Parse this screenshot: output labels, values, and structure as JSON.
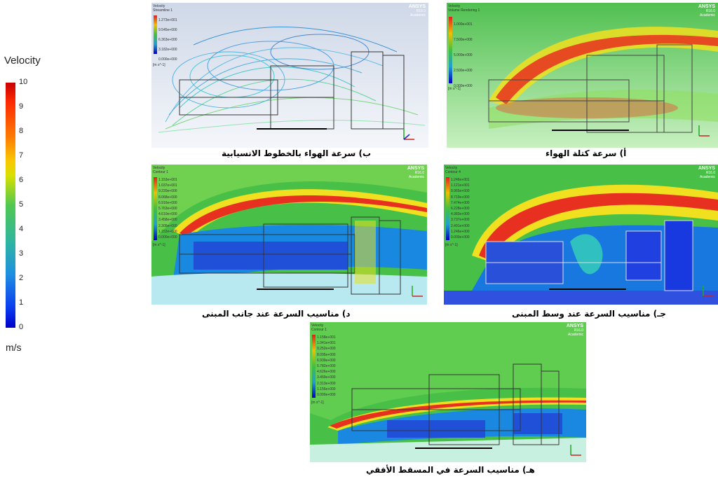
{
  "legend": {
    "title": "Velocity",
    "unit": "m/s",
    "ticks": [
      "10",
      "9",
      "8",
      "7",
      "6",
      "5",
      "4",
      "3",
      "2",
      "1",
      "0"
    ]
  },
  "brand": {
    "name": "ANSYS",
    "version": "R16.0",
    "edition": "Academic"
  },
  "panels": [
    {
      "id": "a",
      "caption": "أ) سرعة كتلة الهواء",
      "legend_title": "Velocity",
      "legend_subtitle": "Volume Rendering 1",
      "legend_values": [
        "1.000e+001",
        "7.500e+000",
        "5.000e+000",
        "2.500e+000",
        "0.000e+000"
      ],
      "legend_unit": "[m s^-1]"
    },
    {
      "id": "b",
      "caption": "ب) سرعة الهواء بالخطوط الانسيابية",
      "legend_title": "Velocity",
      "legend_subtitle": "Streamline 1",
      "legend_values": [
        "1.273e+001",
        "9.545e+000",
        "6.363e+000",
        "3.182e+000",
        "0.000e+000"
      ],
      "legend_unit": "[m s^-1]"
    },
    {
      "id": "c",
      "caption": "جـ) مناسيب السرعة عند وسط المبنى",
      "legend_title": "Velocity",
      "legend_subtitle": "Contour 4",
      "legend_values": [
        "1.246e+001",
        "1.121e+001",
        "9.965e+000",
        "8.719e+000",
        "7.474e+000",
        "6.228e+000",
        "4.983e+000",
        "3.737e+000",
        "2.491e+000",
        "1.246e+000",
        "0.000e+000"
      ],
      "legend_unit": "[m s^-1]"
    },
    {
      "id": "d",
      "caption": "د) مناسيب السرعة عند جانب المبنى",
      "legend_title": "Velocity",
      "legend_subtitle": "Contour 1",
      "legend_values": [
        "1.153e+001",
        "1.037e+001",
        "9.220e+000",
        "8.068e+000",
        "6.916e+000",
        "5.763e+000",
        "4.610e+000",
        "3.458e+000",
        "2.305e+000",
        "1.153e+000",
        "0.000e+000"
      ],
      "legend_unit": "[m s^-1]"
    },
    {
      "id": "e",
      "caption": "هـ) مناسيب السرعة في المسقط الأفقي",
      "legend_title": "Velocity",
      "legend_subtitle": "Contour 1",
      "legend_values": [
        "1.158e+001",
        "1.041e+001",
        "9.252e+000",
        "8.095e+000",
        "6.939e+000",
        "5.782e+000",
        "4.626e+000",
        "3.469e+000",
        "2.313e+000",
        "1.156e+000",
        "0.000e+000"
      ],
      "legend_unit": "[m s^-1]"
    }
  ]
}
